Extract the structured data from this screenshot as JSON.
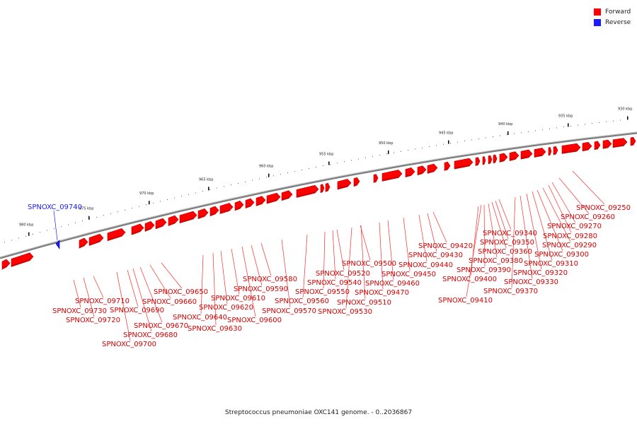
{
  "legend": {
    "forward_label": "Forward",
    "reverse_label": "Reverse",
    "forward_color": "#ff0000",
    "reverse_color": "#1a1aff"
  },
  "caption": "Streptococcus pneumoniae OXC141 genome. - 0..2036867",
  "ruler": {
    "tick_labels": [
      "930 kbp",
      "935 kbp",
      "940 kbp",
      "945 kbp",
      "950 kbp",
      "955 kbp",
      "960 kbp",
      "965 kbp",
      "970 kbp",
      "975 kbp",
      "980 kbp"
    ]
  },
  "genes": {
    "forward": [
      "SPNOXC_09250",
      "SPNOXC_09260",
      "SPNOXC_09270",
      "SPNOXC_09280",
      "SPNOXC_09290",
      "SPNOXC_09300",
      "SPNOXC_09310",
      "SPNOXC_09320",
      "SPNOXC_09330",
      "SPNOXC_09340",
      "SPNOXC_09350",
      "SPNOXC_09360",
      "SPNOXC_09370",
      "SPNOXC_09380",
      "SPNOXC_09390",
      "SPNOXC_09400",
      "SPNOXC_09410",
      "SPNOXC_09420",
      "SPNOXC_09430",
      "SPNOXC_09440",
      "SPNOXC_09450",
      "SPNOXC_09460",
      "SPNOXC_09470",
      "SPNOXC_09500",
      "SPNOXC_09510",
      "SPNOXC_09520",
      "SPNOXC_09530",
      "SPNOXC_09540",
      "SPNOXC_09550",
      "SPNOXC_09560",
      "SPNOXC_09570",
      "SPNOXC_09580",
      "SPNOXC_09590",
      "SPNOXC_09600",
      "SPNOXC_09610",
      "SPNOXC_09620",
      "SPNOXC_09630",
      "SPNOXC_09640",
      "SPNOXC_09650",
      "SPNOXC_09660",
      "SPNOXC_09670",
      "SPNOXC_09680",
      "SPNOXC_09690",
      "SPNOXC_09700",
      "SPNOXC_09710",
      "SPNOXC_09720",
      "SPNOXC_09730"
    ],
    "reverse": [
      "SPNOXC_09740"
    ]
  }
}
